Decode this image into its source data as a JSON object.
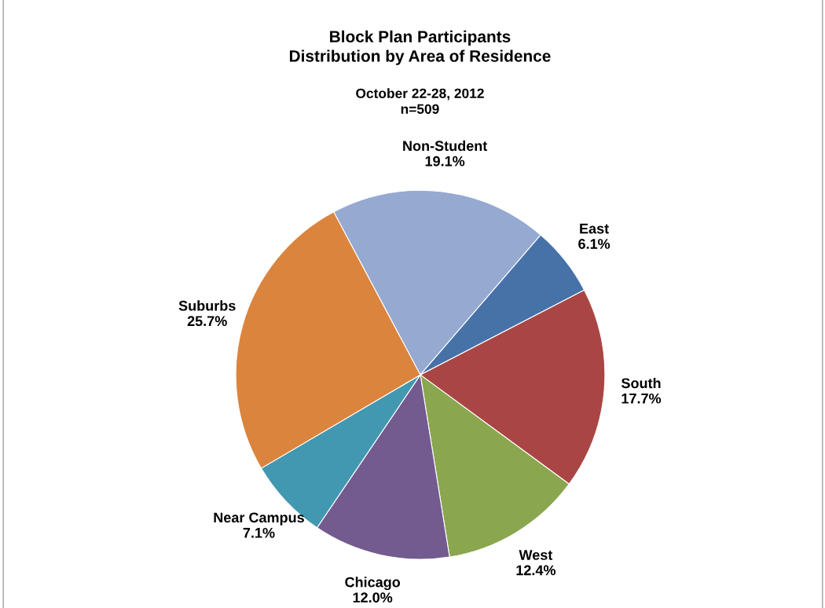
{
  "chart_data": {
    "type": "pie",
    "title": "Block Plan Participants\nDistribution by Area of Residence",
    "subtitle": "October 22-28, 2012\nn=509",
    "categories": [
      "Non-Student",
      "East",
      "South",
      "West",
      "Chicago",
      "Near Campus",
      "Suburbs"
    ],
    "values": [
      19.1,
      6.1,
      17.7,
      12.4,
      12.0,
      7.1,
      25.7
    ],
    "value_labels": [
      "19.1%",
      "6.1%",
      "17.7%",
      "12.4%",
      "12.0%",
      "7.1%",
      "25.7%"
    ],
    "colors": [
      "#95a9d1",
      "#4672a8",
      "#a94645",
      "#8aa64e",
      "#735a8f",
      "#4298b0",
      "#db843d"
    ],
    "legend": false
  }
}
